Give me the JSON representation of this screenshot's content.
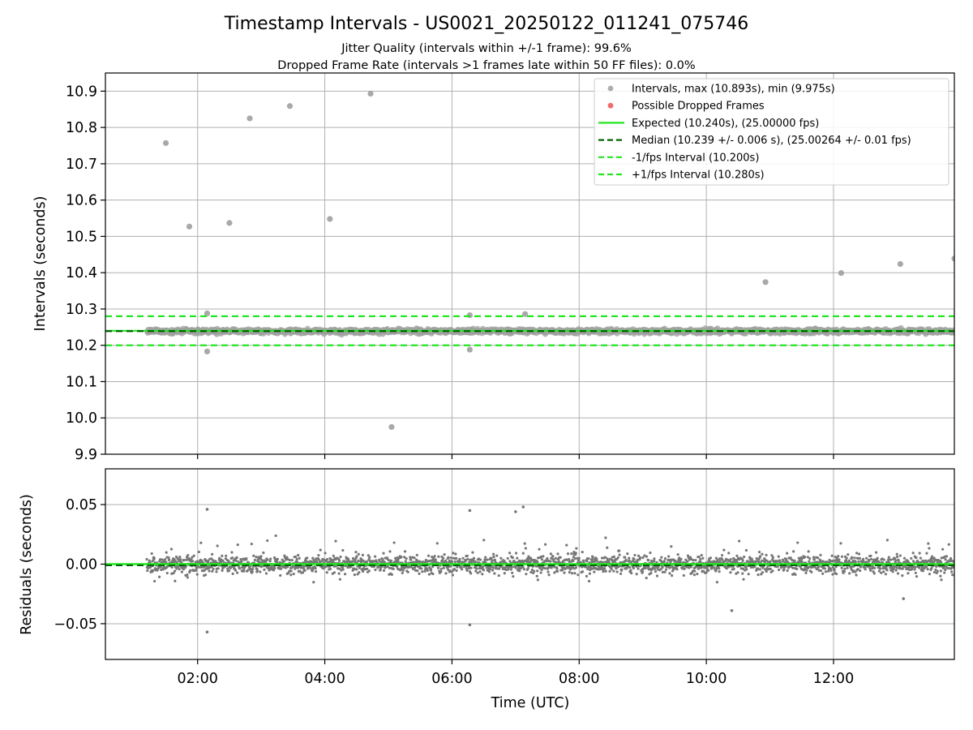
{
  "chart_data": {
    "type": "scatter",
    "title": "Timestamp Intervals - US0021_20250122_011241_075746",
    "subtitle_lines": [
      "Jitter Quality (intervals within +/-1 frame): 99.6%",
      "Dropped Frame Rate (intervals >1 frames late within 50 FF files): 0.0%"
    ],
    "xlabel": "Time (UTC)",
    "x_ticks": [
      "02:00",
      "04:00",
      "06:00",
      "08:00",
      "10:00",
      "12:00"
    ],
    "x_tick_hours": [
      2,
      4,
      6,
      8,
      10,
      12
    ],
    "xlim_hours": [
      0.55,
      13.9
    ],
    "data_start_hours": 1.2,
    "grid": true,
    "colors": {
      "points": "#a0a0a0",
      "dropped": "#ef5350",
      "expected": "#22e622",
      "median": "#006400",
      "fps_bounds": "#22e622",
      "residuals": "#777777"
    },
    "top_panel": {
      "ylabel": "Intervals (seconds)",
      "ylim": [
        9.9,
        10.95
      ],
      "y_ticks": [
        "9.9",
        "10.0",
        "10.1",
        "10.2",
        "10.3",
        "10.4",
        "10.5",
        "10.6",
        "10.7",
        "10.8",
        "10.9"
      ],
      "y_tick_values": [
        9.9,
        10.0,
        10.1,
        10.2,
        10.3,
        10.4,
        10.5,
        10.6,
        10.7,
        10.8,
        10.9
      ],
      "expected": 10.24,
      "median": 10.239,
      "lower_bound": 10.2,
      "upper_bound": 10.28,
      "legend_position": "top-right",
      "legend": [
        {
          "label": "Intervals, max (10.893s), min (9.975s)",
          "kind": "point",
          "color": "#a0a0a0"
        },
        {
          "label": "Possible Dropped Frames",
          "kind": "point",
          "color": "#ef5350"
        },
        {
          "label": "Expected (10.240s), (25.00000 fps)",
          "kind": "line",
          "color": "#22e622"
        },
        {
          "label": "Median (10.239 +/- 0.006 s), (25.00264 +/- 0.01 fps)",
          "kind": "dashed",
          "color": "#006400"
        },
        {
          "label": "-1/fps Interval (10.200s)",
          "kind": "dashed",
          "color": "#22e622"
        },
        {
          "label": "+1/fps Interval (10.280s)",
          "kind": "dashed",
          "color": "#22e622"
        }
      ],
      "outliers": [
        {
          "x": 1.5,
          "y": 10.757
        },
        {
          "x": 1.87,
          "y": 10.527
        },
        {
          "x": 2.15,
          "y": 10.288
        },
        {
          "x": 2.15,
          "y": 10.183
        },
        {
          "x": 2.5,
          "y": 10.537
        },
        {
          "x": 2.82,
          "y": 10.825
        },
        {
          "x": 3.45,
          "y": 10.859
        },
        {
          "x": 4.08,
          "y": 10.548
        },
        {
          "x": 4.72,
          "y": 10.893
        },
        {
          "x": 5.05,
          "y": 9.975
        },
        {
          "x": 6.28,
          "y": 10.283
        },
        {
          "x": 6.28,
          "y": 10.188
        },
        {
          "x": 7.15,
          "y": 10.286
        },
        {
          "x": 10.93,
          "y": 10.374
        },
        {
          "x": 12.12,
          "y": 10.399
        },
        {
          "x": 13.05,
          "y": 10.424
        },
        {
          "x": 13.9,
          "y": 10.439
        }
      ]
    },
    "bottom_panel": {
      "ylabel": "Residuals (seconds)",
      "ylim": [
        -0.08,
        0.08
      ],
      "y_ticks": [
        "−0.05",
        "0.00",
        "0.05"
      ],
      "y_tick_values": [
        -0.05,
        0.0,
        0.05
      ],
      "expected_residual": 0.0,
      "median_residual": -0.001,
      "outliers": [
        {
          "x": 2.15,
          "y": 0.046
        },
        {
          "x": 2.15,
          "y": -0.057
        },
        {
          "x": 6.28,
          "y": 0.045
        },
        {
          "x": 6.28,
          "y": -0.051
        },
        {
          "x": 7.0,
          "y": 0.044
        },
        {
          "x": 7.12,
          "y": 0.048
        },
        {
          "x": 10.4,
          "y": -0.039
        },
        {
          "x": 13.1,
          "y": -0.029
        }
      ]
    }
  }
}
